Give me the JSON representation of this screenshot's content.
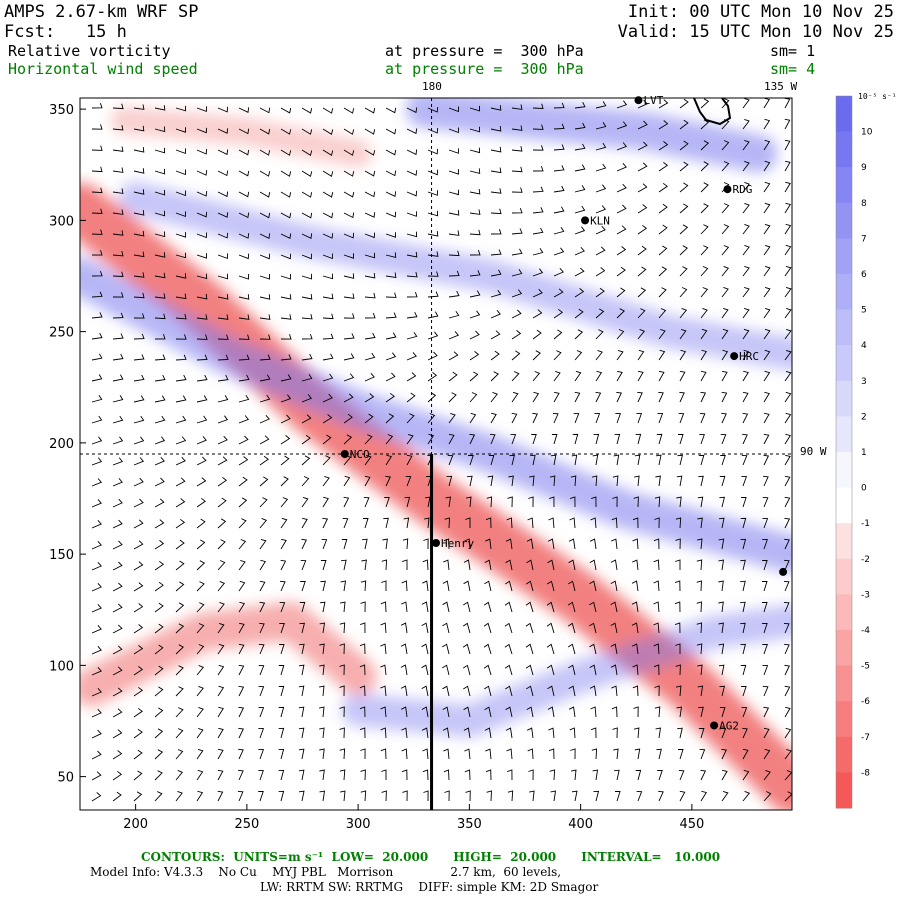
{
  "header": {
    "model": "AMPS 2.67-km WRF SP",
    "init": "Init: 00 UTC Mon 10 Nov 25",
    "fcst": "Fcst:   15 h",
    "valid": "Valid: 15 UTC Mon 10 Nov 25",
    "field1": "Relative vorticity",
    "field1_level": "at pressure =  300 hPa",
    "field1_sm": "sm= 1",
    "field2": "Horizontal wind speed",
    "field2_level": "at pressure =  300 hPa",
    "field2_sm": "sm= 4"
  },
  "map_labels": {
    "lon180": "180",
    "lon135w": "135 W",
    "lon90w": "90 W"
  },
  "stations": [
    {
      "name": "LVT",
      "x": 426,
      "y": 354
    },
    {
      "name": "RDG",
      "x": 466,
      "y": 314
    },
    {
      "name": "KLN",
      "x": 402,
      "y": 300
    },
    {
      "name": "HRC",
      "x": 469,
      "y": 239
    },
    {
      "name": "NCO",
      "x": 294,
      "y": 195
    },
    {
      "name": "Henry",
      "x": 335,
      "y": 155
    },
    {
      "name": "AG2",
      "x": 460,
      "y": 73
    },
    {
      "name": "",
      "x": 491,
      "y": 142
    }
  ],
  "colorbar": {
    "units": "10⁻⁵ s⁻¹",
    "labels": [
      "10",
      "9",
      "8",
      "7",
      "6",
      "5",
      "4",
      "3",
      "2",
      "1",
      "0",
      "-1",
      "-2",
      "-3",
      "-4",
      "-5",
      "-6",
      "-7",
      "-8"
    ],
    "colors": [
      "#6b6bf0",
      "#7777f1",
      "#8585f3",
      "#9393f4",
      "#a1a1f6",
      "#afaff7",
      "#bdbdf8",
      "#cacafa",
      "#d8d8fb",
      "#e6e6fd",
      "#f6f6fd",
      "#ffffff",
      "#fde0e0",
      "#fccccc",
      "#fbb9b9",
      "#f9a5a5",
      "#f89292",
      "#f67e7e",
      "#f56b6b",
      "#f45858"
    ]
  },
  "footer": {
    "contours": "CONTOURS:  UNITS=m s⁻¹  LOW=  20.000      HIGH=  20.000      INTERVAL=   10.000",
    "info1": "Model Info: V4.3.3    No Cu    MYJ PBL   Morrison               2.7 km,  60 levels,",
    "info2": "LW: RRTM SW: RRTMG    DIFF: simple KM: 2D Smagor"
  },
  "chart_data": {
    "type": "heatmap",
    "title": "Relative vorticity / Horizontal wind speed at 300 hPa",
    "x_ticks": [
      200,
      250,
      300,
      350,
      400,
      450
    ],
    "y_ticks": [
      50,
      100,
      150,
      200,
      250,
      300,
      350
    ],
    "xlim": [
      175,
      495
    ],
    "ylim": [
      35,
      355
    ],
    "cross_section": {
      "x": 333,
      "y0": 35,
      "y1": 195
    },
    "vorticity_bands": [
      {
        "sign": "negative",
        "path": [
          [
            175,
            305
          ],
          [
            230,
            262
          ],
          [
            280,
            215
          ],
          [
            333,
            175
          ],
          [
            400,
            130
          ],
          [
            450,
            90
          ],
          [
            495,
            45
          ]
        ],
        "strength": -7
      },
      {
        "sign": "positive",
        "path": [
          [
            175,
            275
          ],
          [
            240,
            240
          ],
          [
            300,
            215
          ],
          [
            360,
            195
          ],
          [
            420,
            170
          ],
          [
            495,
            150
          ]
        ],
        "strength": 4
      },
      {
        "sign": "positive",
        "path": [
          [
            200,
            310
          ],
          [
            280,
            290
          ],
          [
            360,
            275
          ],
          [
            440,
            250
          ],
          [
            495,
            240
          ]
        ],
        "strength": 3
      },
      {
        "sign": "negative",
        "path": [
          [
            180,
            90
          ],
          [
            230,
            115
          ],
          [
            270,
            120
          ],
          [
            300,
            95
          ]
        ],
        "strength": -4
      },
      {
        "sign": "positive",
        "path": [
          [
            300,
            80
          ],
          [
            350,
            75
          ],
          [
            400,
            95
          ],
          [
            460,
            115
          ],
          [
            495,
            120
          ]
        ],
        "strength": 3
      },
      {
        "sign": "positive",
        "path": [
          [
            330,
            350
          ],
          [
            380,
            345
          ],
          [
            430,
            340
          ],
          [
            480,
            330
          ]
        ],
        "strength": 4
      },
      {
        "sign": "negative",
        "path": [
          [
            195,
            345
          ],
          [
            250,
            340
          ],
          [
            300,
            330
          ]
        ],
        "strength": -2
      }
    ]
  }
}
